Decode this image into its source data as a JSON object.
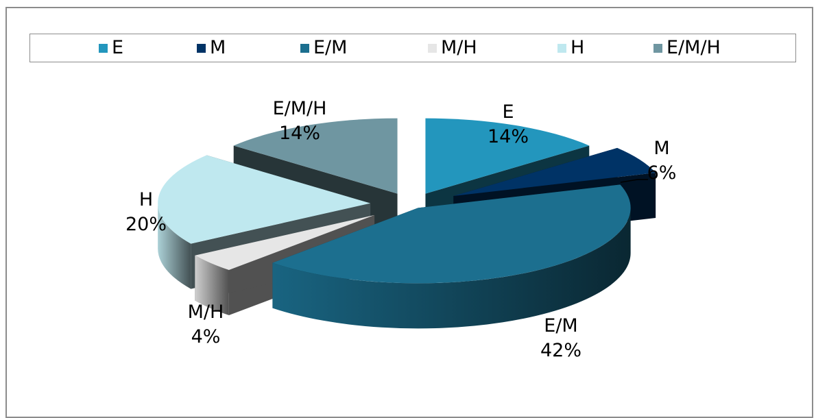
{
  "chart_data": {
    "type": "pie",
    "style": "3d-exploded",
    "legend_position": "top",
    "categories": [
      "E",
      "M",
      "E/M",
      "M/H",
      "H",
      "E/M/H"
    ],
    "values": [
      14,
      6,
      42,
      4,
      20,
      14
    ],
    "labels": [
      "14%",
      "6%",
      "42%",
      "4%",
      "20%",
      "14%"
    ],
    "colors": [
      "#2396bd",
      "#003366",
      "#1c6f8f",
      "#e6e6e6",
      "#bfe8ef",
      "#6f96a1"
    ],
    "title": ""
  }
}
